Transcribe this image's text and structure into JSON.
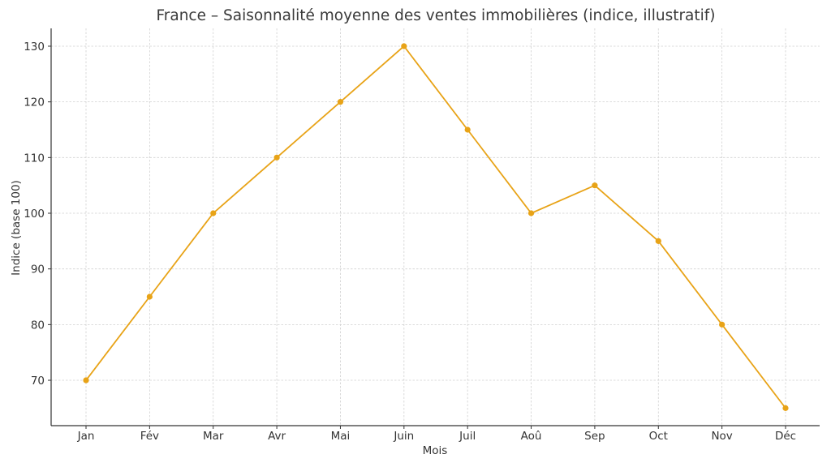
{
  "chart_data": {
    "type": "line",
    "title": "France – Saisonnalité moyenne des ventes immobilières (indice, illustratif)",
    "xlabel": "Mois",
    "ylabel": "Indice (base 100)",
    "categories": [
      "Jan",
      "Fév",
      "Mar",
      "Avr",
      "Mai",
      "Juin",
      "Juil",
      "Aoû",
      "Sep",
      "Oct",
      "Nov",
      "Déc"
    ],
    "series": [
      {
        "name": "Indice",
        "values": [
          70,
          85,
          100,
          110,
          120,
          130,
          115,
          100,
          105,
          95,
          80,
          65
        ],
        "color": "#E8A317"
      }
    ],
    "yticks": [
      70,
      80,
      90,
      100,
      110,
      120,
      130
    ],
    "ylim": [
      61.85,
      133.2
    ],
    "grid": true,
    "legend": null,
    "marker": "circle"
  }
}
